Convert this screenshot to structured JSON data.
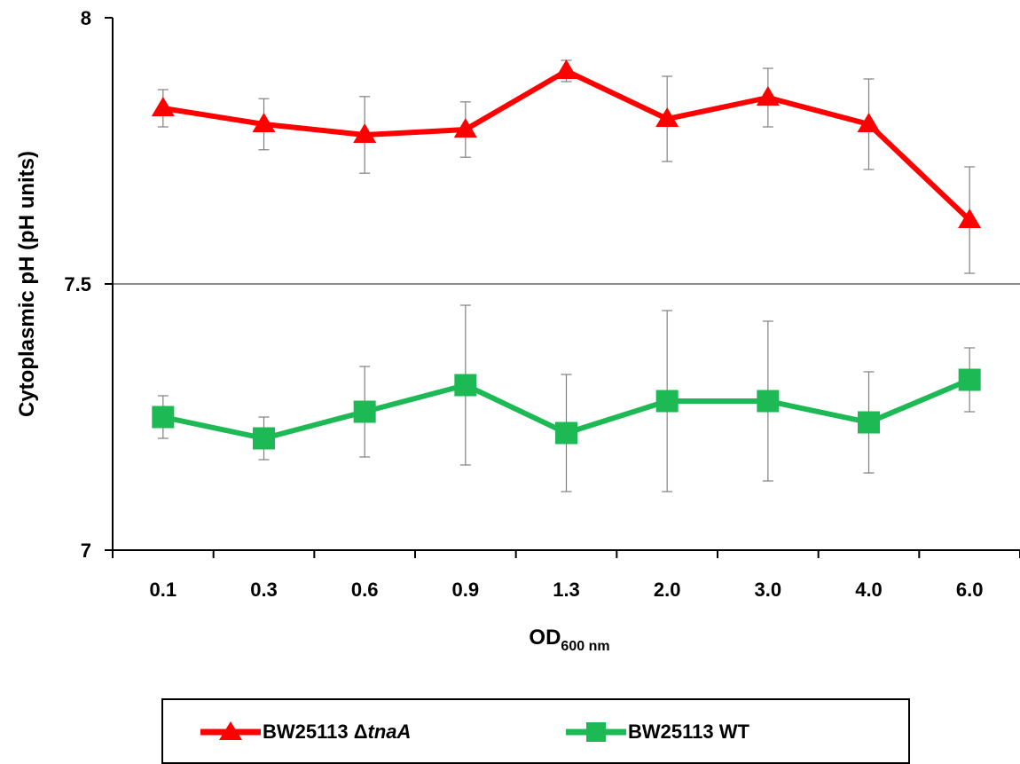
{
  "chart_data": {
    "type": "line",
    "xlabel_main": "OD",
    "xlabel_sub": "600 nm",
    "ylabel": "Cytoplasmic  pH (pH units)",
    "ylim": [
      7,
      8
    ],
    "yticks": [
      "7",
      "7.5",
      "8"
    ],
    "categories": [
      "0.1",
      "0.3",
      "0.6",
      "0.9",
      "1.3",
      "2.0",
      "3.0",
      "4.0",
      "6.0"
    ],
    "gridlines_y": [
      7.5
    ],
    "error_bars": true,
    "legend_position": "bottom",
    "series": [
      {
        "name_prefix": "BW25113 Δ",
        "name_italic": "tnaA",
        "color": "#ff0000",
        "marker": "triangle",
        "values": [
          7.83,
          7.8,
          7.78,
          7.79,
          7.9,
          7.81,
          7.85,
          7.8,
          7.62
        ],
        "errors": [
          0.035,
          0.048,
          0.072,
          0.052,
          0.02,
          0.08,
          0.055,
          0.085,
          0.1
        ]
      },
      {
        "name_prefix": "BW25113 WT",
        "name_italic": "",
        "color": "#1db954",
        "marker": "square",
        "values": [
          7.25,
          7.21,
          7.26,
          7.31,
          7.22,
          7.28,
          7.28,
          7.24,
          7.32
        ],
        "errors": [
          0.04,
          0.04,
          0.085,
          0.15,
          0.11,
          0.17,
          0.15,
          0.095,
          0.06
        ]
      }
    ]
  }
}
